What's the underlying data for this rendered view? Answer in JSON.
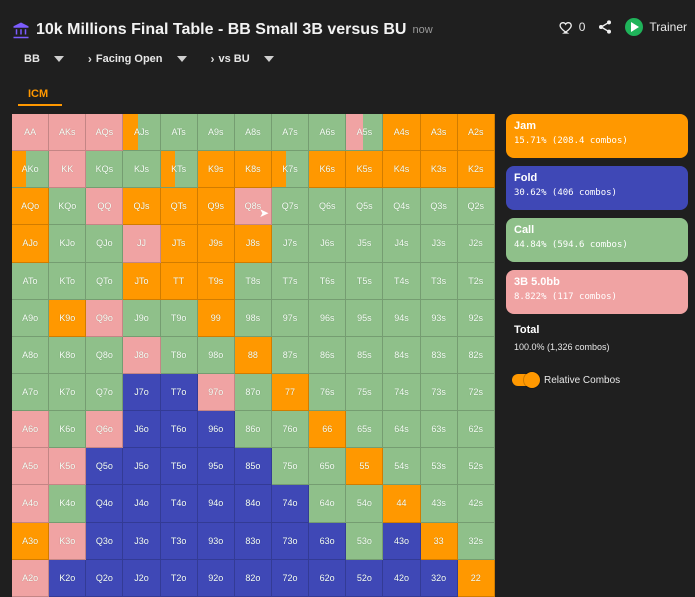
{
  "header": {
    "title": "10k Millions Final Table - BB Small 3B versus BU",
    "time": "now",
    "likes": "0",
    "trainer": "Trainer"
  },
  "crumbs": {
    "position": "BB",
    "facing": "Facing Open",
    "versus": "vs BU"
  },
  "tab": {
    "label": "ICM"
  },
  "legend": {
    "jam": {
      "title": "Jam",
      "sub": "15.71% (208.4 combos)"
    },
    "fold": {
      "title": "Fold",
      "sub": "30.62% (406 combos)"
    },
    "call": {
      "title": "Call",
      "sub": "44.84% (594.6 combos)"
    },
    "threeb": {
      "title": "3B 5.0bb",
      "sub": "8.822% (117 combos)"
    },
    "total": {
      "title": "Total",
      "sub": "100.0% (1,326 combos)"
    },
    "toggle": {
      "label": "Relative Combos"
    }
  },
  "grid": {
    "rows": [
      [
        [
          "AA",
          "threeb"
        ],
        [
          "AKs",
          "threeb"
        ],
        [
          "AQs",
          "threeb"
        ],
        [
          "AJs",
          "mix-left-orange"
        ],
        [
          "ATs",
          "call"
        ],
        [
          "A9s",
          "call"
        ],
        [
          "A8s",
          "call"
        ],
        [
          "A7s",
          "call"
        ],
        [
          "A6s",
          "call"
        ],
        [
          "A5s",
          "mix-left-pink"
        ],
        [
          "A4s",
          "jam"
        ],
        [
          "A3s",
          "jam"
        ],
        [
          "A2s",
          "jam"
        ]
      ],
      [
        [
          "AKo",
          "mix-left-orange"
        ],
        [
          "KK",
          "threeb"
        ],
        [
          "KQs",
          "call"
        ],
        [
          "KJs",
          "call"
        ],
        [
          "KTs",
          "mix-left-orange"
        ],
        [
          "K9s",
          "jam"
        ],
        [
          "K8s",
          "jam"
        ],
        [
          "K7s",
          "mix-left-orange"
        ],
        [
          "K6s",
          "jam"
        ],
        [
          "K5s",
          "jam"
        ],
        [
          "K4s",
          "jam"
        ],
        [
          "K3s",
          "jam"
        ],
        [
          "K2s",
          "jam"
        ]
      ],
      [
        [
          "AQo",
          "jam"
        ],
        [
          "KQo",
          "call"
        ],
        [
          "QQ",
          "threeb"
        ],
        [
          "QJs",
          "jam"
        ],
        [
          "QTs",
          "jam"
        ],
        [
          "Q9s",
          "jam"
        ],
        [
          "Q8s",
          "threeb"
        ],
        [
          "Q7s",
          "call"
        ],
        [
          "Q6s",
          "call"
        ],
        [
          "Q5s",
          "call"
        ],
        [
          "Q4s",
          "call"
        ],
        [
          "Q3s",
          "call"
        ],
        [
          "Q2s",
          "call"
        ]
      ],
      [
        [
          "AJo",
          "jam"
        ],
        [
          "KJo",
          "call"
        ],
        [
          "QJo",
          "call"
        ],
        [
          "JJ",
          "threeb"
        ],
        [
          "JTs",
          "jam"
        ],
        [
          "J9s",
          "jam"
        ],
        [
          "J8s",
          "jam"
        ],
        [
          "J7s",
          "call"
        ],
        [
          "J6s",
          "call"
        ],
        [
          "J5s",
          "call"
        ],
        [
          "J4s",
          "call"
        ],
        [
          "J3s",
          "call"
        ],
        [
          "J2s",
          "call"
        ]
      ],
      [
        [
          "ATo",
          "call"
        ],
        [
          "KTo",
          "call"
        ],
        [
          "QTo",
          "call"
        ],
        [
          "JTo",
          "jam"
        ],
        [
          "TT",
          "jam"
        ],
        [
          "T9s",
          "jam"
        ],
        [
          "T8s",
          "call"
        ],
        [
          "T7s",
          "call"
        ],
        [
          "T6s",
          "call"
        ],
        [
          "T5s",
          "call"
        ],
        [
          "T4s",
          "call"
        ],
        [
          "T3s",
          "call"
        ],
        [
          "T2s",
          "call"
        ]
      ],
      [
        [
          "A9o",
          "call"
        ],
        [
          "K9o",
          "jam"
        ],
        [
          "Q9o",
          "threeb"
        ],
        [
          "J9o",
          "call"
        ],
        [
          "T9o",
          "call"
        ],
        [
          "99",
          "jam"
        ],
        [
          "98s",
          "call"
        ],
        [
          "97s",
          "call"
        ],
        [
          "96s",
          "call"
        ],
        [
          "95s",
          "call"
        ],
        [
          "94s",
          "call"
        ],
        [
          "93s",
          "call"
        ],
        [
          "92s",
          "call"
        ]
      ],
      [
        [
          "A8o",
          "call"
        ],
        [
          "K8o",
          "call"
        ],
        [
          "Q8o",
          "call"
        ],
        [
          "J8o",
          "threeb"
        ],
        [
          "T8o",
          "call"
        ],
        [
          "98o",
          "call"
        ],
        [
          "88",
          "jam"
        ],
        [
          "87s",
          "call"
        ],
        [
          "86s",
          "call"
        ],
        [
          "85s",
          "call"
        ],
        [
          "84s",
          "call"
        ],
        [
          "83s",
          "call"
        ],
        [
          "82s",
          "call"
        ]
      ],
      [
        [
          "A7o",
          "call"
        ],
        [
          "K7o",
          "call"
        ],
        [
          "Q7o",
          "call"
        ],
        [
          "J7o",
          "fold"
        ],
        [
          "T7o",
          "fold"
        ],
        [
          "97o",
          "threeb"
        ],
        [
          "87o",
          "call"
        ],
        [
          "77",
          "jam"
        ],
        [
          "76s",
          "call"
        ],
        [
          "75s",
          "call"
        ],
        [
          "74s",
          "call"
        ],
        [
          "73s",
          "call"
        ],
        [
          "72s",
          "call"
        ]
      ],
      [
        [
          "A6o",
          "threeb"
        ],
        [
          "K6o",
          "call"
        ],
        [
          "Q6o",
          "threeb"
        ],
        [
          "J6o",
          "fold"
        ],
        [
          "T6o",
          "fold"
        ],
        [
          "96o",
          "fold"
        ],
        [
          "86o",
          "call"
        ],
        [
          "76o",
          "call"
        ],
        [
          "66",
          "jam"
        ],
        [
          "65s",
          "call"
        ],
        [
          "64s",
          "call"
        ],
        [
          "63s",
          "call"
        ],
        [
          "62s",
          "call"
        ]
      ],
      [
        [
          "A5o",
          "threeb"
        ],
        [
          "K5o",
          "threeb"
        ],
        [
          "Q5o",
          "fold"
        ],
        [
          "J5o",
          "fold"
        ],
        [
          "T5o",
          "fold"
        ],
        [
          "95o",
          "fold"
        ],
        [
          "85o",
          "fold"
        ],
        [
          "75o",
          "call"
        ],
        [
          "65o",
          "call"
        ],
        [
          "55",
          "jam"
        ],
        [
          "54s",
          "call"
        ],
        [
          "53s",
          "call"
        ],
        [
          "52s",
          "call"
        ]
      ],
      [
        [
          "A4o",
          "threeb"
        ],
        [
          "K4o",
          "call"
        ],
        [
          "Q4o",
          "fold"
        ],
        [
          "J4o",
          "fold"
        ],
        [
          "T4o",
          "fold"
        ],
        [
          "94o",
          "fold"
        ],
        [
          "84o",
          "fold"
        ],
        [
          "74o",
          "fold"
        ],
        [
          "64o",
          "call"
        ],
        [
          "54o",
          "call"
        ],
        [
          "44",
          "jam"
        ],
        [
          "43s",
          "call"
        ],
        [
          "42s",
          "call"
        ]
      ],
      [
        [
          "A3o",
          "jam"
        ],
        [
          "K3o",
          "threeb"
        ],
        [
          "Q3o",
          "fold"
        ],
        [
          "J3o",
          "fold"
        ],
        [
          "T3o",
          "fold"
        ],
        [
          "93o",
          "fold"
        ],
        [
          "83o",
          "fold"
        ],
        [
          "73o",
          "fold"
        ],
        [
          "63o",
          "fold"
        ],
        [
          "53o",
          "call"
        ],
        [
          "43o",
          "fold"
        ],
        [
          "33",
          "jam"
        ],
        [
          "32s",
          "call"
        ]
      ],
      [
        [
          "A2o",
          "threeb"
        ],
        [
          "K2o",
          "fold"
        ],
        [
          "Q2o",
          "fold"
        ],
        [
          "J2o",
          "fold"
        ],
        [
          "T2o",
          "fold"
        ],
        [
          "92o",
          "fold"
        ],
        [
          "82o",
          "fold"
        ],
        [
          "72o",
          "fold"
        ],
        [
          "62o",
          "fold"
        ],
        [
          "52o",
          "fold"
        ],
        [
          "42o",
          "fold"
        ],
        [
          "32o",
          "fold"
        ],
        [
          "22",
          "jam"
        ]
      ]
    ]
  },
  "colors": {
    "jam": "#ff9800",
    "fold": "#3f48b6",
    "call": "#8fc08a",
    "threeb": "#f0a3a3"
  }
}
